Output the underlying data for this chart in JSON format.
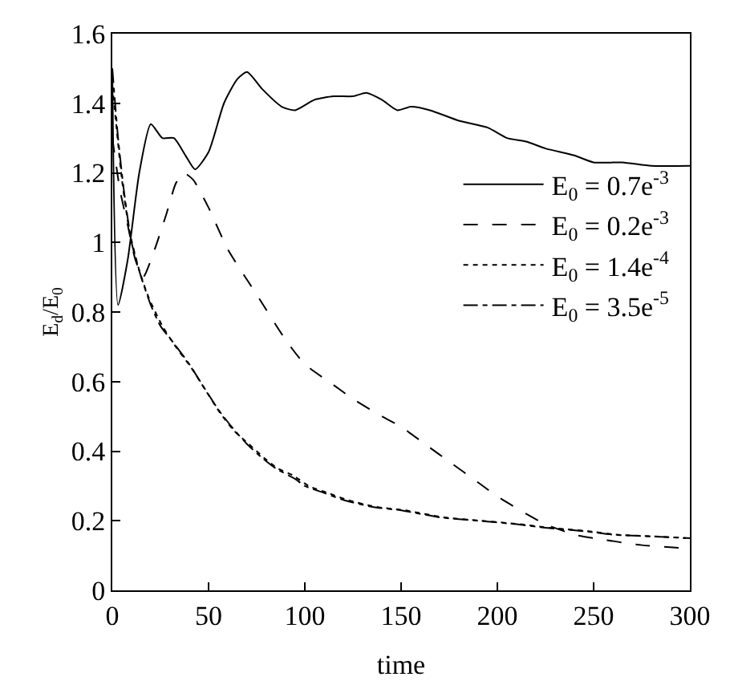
{
  "chart_data": {
    "type": "line",
    "xlabel": "time",
    "ylabel": "E$_{d}$/E$_{0}$",
    "xlim": [
      0,
      300
    ],
    "xticks": [
      0,
      50,
      100,
      150,
      200,
      250,
      300
    ],
    "ylim": [
      0,
      1.6
    ],
    "yticks": [
      0,
      0.2,
      0.4,
      0.6,
      0.8,
      1,
      1.2,
      1.4,
      1.6
    ],
    "legend": "right",
    "marker": "none",
    "series": [
      {
        "name": "E$_{0}$ = 0.7e$^{-3}$",
        "color": "#000000",
        "line_style": "solid",
        "x": [
          0,
          3,
          8,
          14,
          20,
          26,
          32,
          38,
          43,
          50,
          58,
          65,
          70,
          78,
          88,
          95,
          105,
          115,
          125,
          132,
          140,
          148,
          155,
          165,
          180,
          195,
          205,
          215,
          225,
          240,
          250,
          265,
          280,
          300
        ],
        "values": [
          1.5,
          0.82,
          0.95,
          1.2,
          1.34,
          1.3,
          1.3,
          1.25,
          1.21,
          1.26,
          1.4,
          1.47,
          1.49,
          1.44,
          1.39,
          1.38,
          1.41,
          1.42,
          1.42,
          1.43,
          1.41,
          1.38,
          1.39,
          1.38,
          1.35,
          1.33,
          1.3,
          1.29,
          1.27,
          1.25,
          1.23,
          1.23,
          1.22,
          1.22
        ]
      },
      {
        "name": "E$_{0}$ = 0.2e$^{-3}$",
        "color": "#000000",
        "line_style": "dashed",
        "x": [
          0,
          4,
          8,
          12,
          16,
          22,
          28,
          33,
          37,
          42,
          50,
          60,
          75,
          90,
          100,
          115,
          125,
          140,
          150,
          165,
          175,
          190,
          200,
          215,
          225,
          240,
          250,
          275,
          300
        ],
        "values": [
          1.3,
          1.15,
          1.05,
          0.95,
          0.9,
          0.98,
          1.08,
          1.17,
          1.2,
          1.18,
          1.1,
          0.98,
          0.85,
          0.72,
          0.65,
          0.59,
          0.55,
          0.5,
          0.47,
          0.41,
          0.37,
          0.31,
          0.27,
          0.22,
          0.19,
          0.16,
          0.15,
          0.13,
          0.12
        ]
      },
      {
        "name": "E$_{0}$ = 1.4e$^{-4}$",
        "color": "#000000",
        "line_style": "dotted",
        "x": [
          0,
          2,
          5,
          9,
          14,
          19,
          26,
          33,
          41,
          49,
          56,
          63,
          71,
          79,
          86,
          94,
          102,
          112,
          122,
          137,
          152,
          172,
          192,
          212,
          227,
          247,
          262,
          282,
          298
        ],
        "values": [
          1.45,
          1.34,
          1.18,
          1.03,
          0.92,
          0.84,
          0.76,
          0.7,
          0.64,
          0.57,
          0.51,
          0.46,
          0.42,
          0.38,
          0.35,
          0.33,
          0.3,
          0.28,
          0.26,
          0.24,
          0.23,
          0.21,
          0.2,
          0.19,
          0.18,
          0.17,
          0.16,
          0.155,
          0.15
        ]
      },
      {
        "name": "E$_{0}$ = 3.5e$^{-5}$",
        "color": "#000000",
        "line_style": "dashdot",
        "x": [
          0,
          3,
          6,
          10,
          15,
          20,
          25,
          32,
          40,
          48,
          55,
          62,
          70,
          78,
          85,
          95,
          100,
          110,
          120,
          135,
          150,
          170,
          190,
          210,
          225,
          245,
          260,
          280,
          300
        ],
        "values": [
          1.5,
          1.3,
          1.15,
          1.0,
          0.9,
          0.82,
          0.76,
          0.71,
          0.65,
          0.58,
          0.52,
          0.47,
          0.42,
          0.38,
          0.35,
          0.32,
          0.3,
          0.28,
          0.26,
          0.24,
          0.23,
          0.21,
          0.2,
          0.19,
          0.18,
          0.17,
          0.16,
          0.155,
          0.15
        ]
      }
    ]
  }
}
